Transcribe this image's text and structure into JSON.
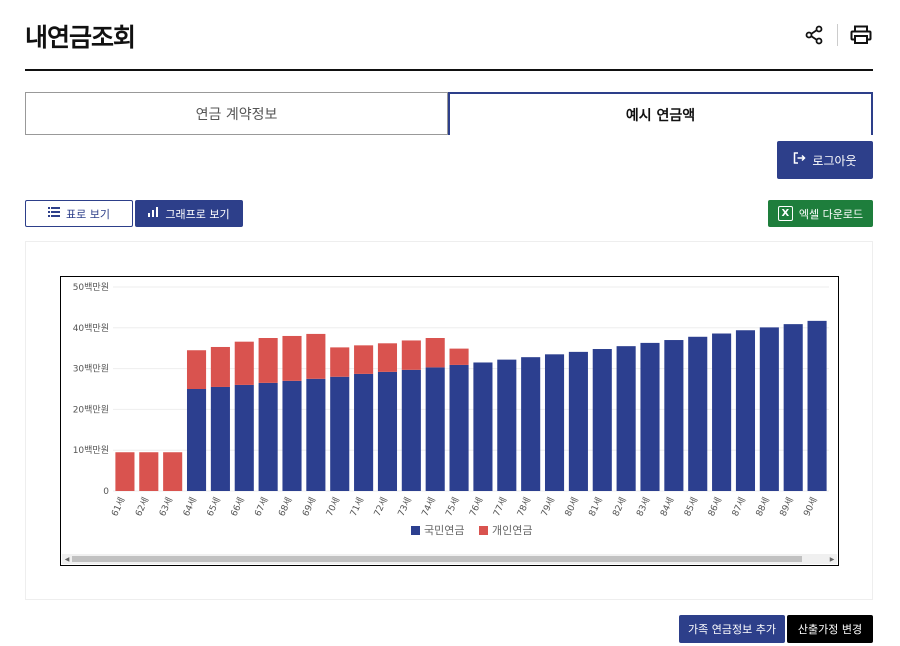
{
  "header": {
    "title": "내연금조회",
    "share_icon": "share-icon",
    "print_icon": "print-icon"
  },
  "tabs": [
    {
      "label": "연금 계약정보",
      "active": false
    },
    {
      "label": "예시 연금액",
      "active": true
    }
  ],
  "buttons": {
    "logout": "로그아웃",
    "table_view": "표로 보기",
    "graph_view": "그래프로 보기",
    "excel_download": "엑셀 다운로드",
    "add_family": "가족 연금정보 추가",
    "change_assumptions": "산출가정 변경"
  },
  "colors": {
    "primary": "#2d3f8a",
    "national": "#2c3f8f",
    "personal": "#d9534f",
    "excel": "#1e7e3c"
  },
  "chart_data": {
    "type": "bar",
    "stacked": true,
    "categories": [
      "61세",
      "62세",
      "63세",
      "64세",
      "65세",
      "66세",
      "67세",
      "68세",
      "69세",
      "70세",
      "71세",
      "72세",
      "73세",
      "74세",
      "75세",
      "76세",
      "77세",
      "78세",
      "79세",
      "80세",
      "81세",
      "82세",
      "83세",
      "84세",
      "85세",
      "86세",
      "87세",
      "88세",
      "89세",
      "90세"
    ],
    "series": [
      {
        "name": "국민연금",
        "color": "#2c3f8f",
        "values": [
          0,
          0,
          0,
          25,
          25.5,
          26,
          26.5,
          27,
          27.5,
          28,
          28.7,
          29.2,
          29.7,
          30.3,
          30.9,
          31.5,
          32.2,
          32.8,
          33.5,
          34.1,
          34.8,
          35.5,
          36.3,
          37,
          37.8,
          38.6,
          39.4,
          40.1,
          40.9,
          41.7
        ]
      },
      {
        "name": "개인연금",
        "color": "#d9534f",
        "values": [
          9.5,
          9.5,
          9.5,
          9.5,
          9.8,
          10.6,
          11,
          11,
          11,
          7.2,
          7,
          7,
          7.2,
          7.2,
          4,
          0,
          0,
          0,
          0,
          0,
          0,
          0,
          0,
          0,
          0,
          0,
          0,
          0,
          0,
          0
        ]
      }
    ],
    "y_ticks": [
      "0",
      "10백만원",
      "20백만원",
      "30백만원",
      "40백만원",
      "50백만원"
    ],
    "ylim": [
      0,
      50
    ],
    "legend": "bottom-center",
    "grid": true
  }
}
